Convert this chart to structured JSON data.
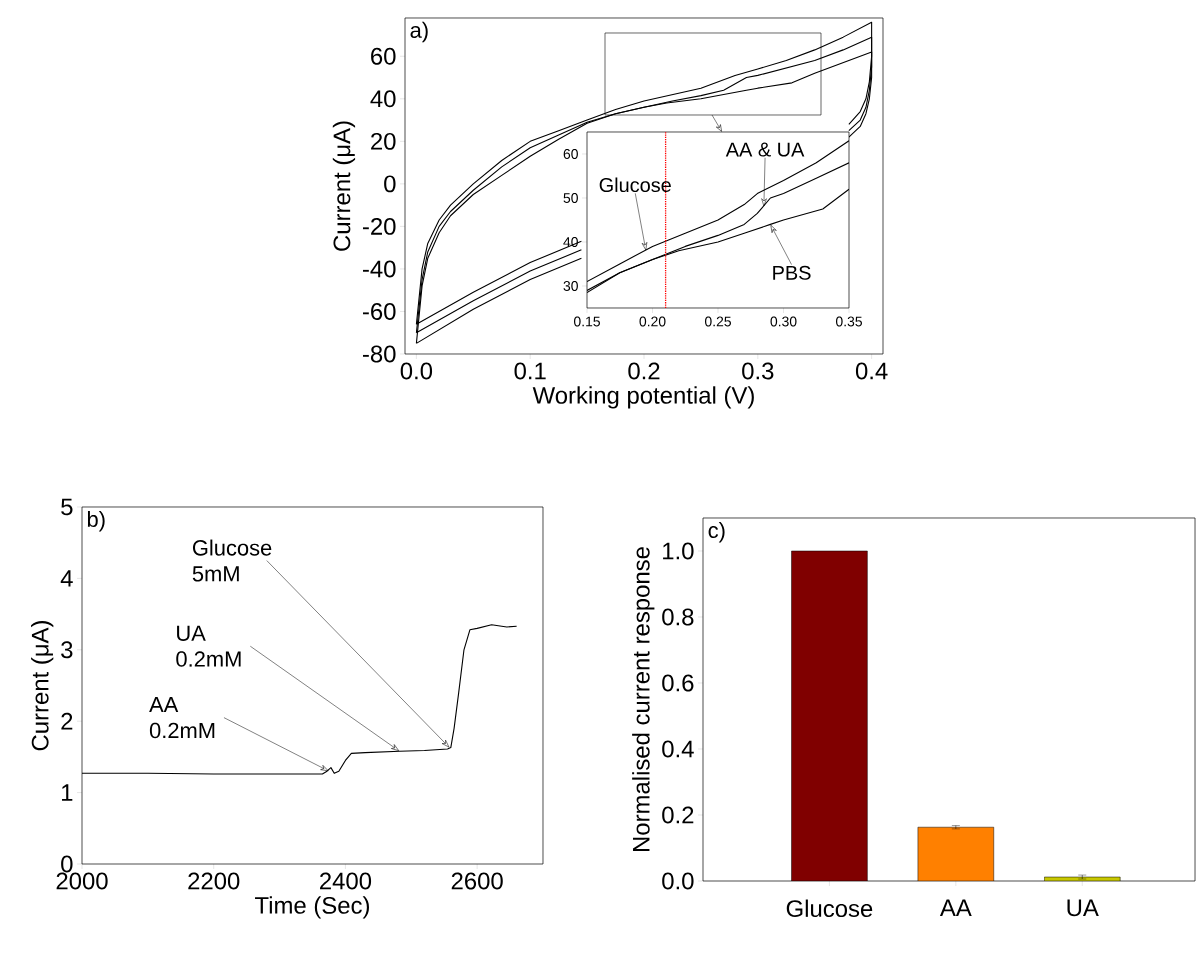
{
  "chart_data": [
    {
      "type": "line",
      "xlabel": "Working potential (V)",
      "ylabel": "Current (μA)",
      "annotations": [
        "a)"
      ],
      "xlim": [
        -0.01,
        0.41
      ],
      "ylim": [
        -80,
        78
      ],
      "xticks": [
        {
          "value": 0,
          "label": "0.0"
        },
        {
          "value": 0.1,
          "label": "0.1"
        },
        {
          "value": 0.2,
          "label": "0.2"
        },
        {
          "value": 0.3,
          "label": "0.3"
        },
        {
          "value": 0.4,
          "label": "0.4"
        }
      ],
      "yticks": [
        -80,
        -60,
        -40,
        -20,
        0,
        20,
        40,
        60
      ],
      "series": [
        {
          "color": "#000000",
          "x": [
            0,
            0.005,
            0.01,
            0.02,
            0.03,
            0.05,
            0.075,
            0.1,
            0.125,
            0.15,
            0.175,
            0.2,
            0.225,
            0.25,
            0.28,
            0.3,
            0.325,
            0.35,
            0.375,
            0.4,
            0.4,
            0.398,
            0.395,
            0.39,
            0.38,
            0.36,
            0.3,
            0.25,
            0.2,
            0.145,
            0.1,
            0.05,
            0
          ],
          "values": [
            -66,
            -40,
            -28,
            -17,
            -10,
            0,
            11,
            20,
            25,
            30,
            35,
            39,
            42,
            45,
            51,
            54,
            58,
            63,
            69,
            76,
            60,
            48,
            40,
            34,
            28,
            null,
            null,
            null,
            null,
            -27,
            -37,
            -51,
            -66
          ]
        },
        {
          "color": "#000000",
          "x": [
            0,
            0.005,
            0.01,
            0.02,
            0.03,
            0.05,
            0.075,
            0.1,
            0.125,
            0.15,
            0.175,
            0.2,
            0.225,
            0.25,
            0.27,
            0.29,
            0.3,
            0.325,
            0.35,
            0.375,
            0.4,
            0.4,
            0.398,
            0.395,
            0.39,
            0.38,
            0.36,
            0.3,
            0.25,
            0.2,
            0.145,
            0.1,
            0.05,
            0
          ],
          "values": [
            -70,
            -45,
            -32,
            -20,
            -13,
            -3,
            8,
            17,
            23,
            29,
            33,
            36,
            39,
            41.5,
            44,
            50,
            51,
            54.5,
            58,
            63,
            69,
            55,
            44,
            36,
            30,
            25,
            null,
            null,
            null,
            null,
            -31,
            -41,
            -55,
            -70
          ]
        },
        {
          "color": "#000000",
          "x": [
            0,
            0.005,
            0.01,
            0.02,
            0.03,
            0.05,
            0.075,
            0.1,
            0.125,
            0.15,
            0.175,
            0.2,
            0.22,
            0.25,
            0.29,
            0.3,
            0.33,
            0.35,
            0.375,
            0.4,
            0.4,
            0.398,
            0.395,
            0.39,
            0.38,
            0.36,
            0.3,
            0.25,
            0.2,
            0.145,
            0.1,
            0.05,
            0
          ],
          "values": [
            -75,
            -48,
            -35,
            -23,
            -15,
            -5,
            4,
            13,
            21,
            28.5,
            33,
            36,
            38,
            40,
            44,
            45,
            47.5,
            52,
            57,
            62,
            50,
            40,
            33,
            27,
            22,
            null,
            null,
            null,
            null,
            -35,
            -45,
            -59,
            -75
          ]
        }
      ]
    },
    {
      "type": "line",
      "xlim": [
        0.15,
        0.35
      ],
      "ylim": [
        25,
        65
      ],
      "xticks": [
        {
          "value": 0.15,
          "label": "0.15"
        },
        {
          "value": 0.2,
          "label": "0.20"
        },
        {
          "value": 0.25,
          "label": "0.25"
        },
        {
          "value": 0.3,
          "label": "0.30"
        },
        {
          "value": 0.35,
          "label": "0.35"
        }
      ],
      "yticks": [
        30,
        40,
        50,
        60
      ],
      "ref_lines": [
        {
          "axis": "x",
          "value": 0.21,
          "color": "#ff0000",
          "line_style": "dotted"
        }
      ],
      "annotations": [
        {
          "text": "Glucose",
          "x": 0.195,
          "y": 38
        },
        {
          "text": "AA & UA",
          "x": 0.285,
          "y": 48
        },
        {
          "text": "PBS",
          "x": 0.29,
          "y": 44
        }
      ],
      "series": [
        {
          "color": "#000000",
          "x": [
            0.15,
            0.175,
            0.2,
            0.225,
            0.25,
            0.27,
            0.28,
            0.3,
            0.325,
            0.35
          ],
          "values": [
            31,
            35,
            39,
            42,
            45,
            48.5,
            51,
            54,
            58,
            63
          ]
        },
        {
          "color": "#000000",
          "x": [
            0.15,
            0.175,
            0.2,
            0.225,
            0.25,
            0.27,
            0.28,
            0.29,
            0.3,
            0.325,
            0.35
          ],
          "values": [
            29,
            33,
            36,
            39,
            41.5,
            44,
            46.5,
            50,
            51,
            54.5,
            58
          ]
        },
        {
          "color": "#000000",
          "x": [
            0.15,
            0.175,
            0.2,
            0.22,
            0.25,
            0.27,
            0.29,
            0.3,
            0.33,
            0.35
          ],
          "values": [
            28.5,
            33,
            36,
            38,
            40,
            42,
            44,
            45,
            47.5,
            52
          ]
        }
      ]
    },
    {
      "type": "line",
      "xlabel": "Time (Sec)",
      "ylabel": "Current (μA)",
      "xlim": [
        2000,
        2700
      ],
      "ylim": [
        0,
        5
      ],
      "xticks": [
        2000,
        2200,
        2400,
        2600
      ],
      "yticks": [
        0,
        1,
        2,
        3,
        4,
        5
      ],
      "annotations": [
        "b)",
        {
          "text": "AA 0.2mM",
          "x": 2375,
          "y": 1.3
        },
        {
          "text": "UA 0.2mM",
          "x": 2482,
          "y": 1.58
        },
        {
          "text": "Glucose 5mM",
          "x": 2558,
          "y": 1.63
        }
      ],
      "series": [
        {
          "color": "#000000",
          "x": [
            2000,
            2100,
            2200,
            2300,
            2365,
            2372,
            2378,
            2383,
            2390,
            2400,
            2409,
            2430,
            2482,
            2520,
            2555,
            2560,
            2565,
            2572,
            2580,
            2589,
            2600,
            2622,
            2645,
            2660
          ],
          "values": [
            1.27,
            1.27,
            1.26,
            1.26,
            1.26,
            1.3,
            1.35,
            1.27,
            1.3,
            1.45,
            1.55,
            1.56,
            1.58,
            1.59,
            1.61,
            1.63,
            1.9,
            2.4,
            3.0,
            3.28,
            3.3,
            3.35,
            3.32,
            3.33
          ]
        }
      ]
    },
    {
      "type": "bar",
      "ylabel": "Normalised current response",
      "annotations": [
        "c)"
      ],
      "categories": [
        "Glucose",
        "AA",
        "UA"
      ],
      "values": [
        1.0,
        0.163,
        0.012
      ],
      "colors": [
        "#800000",
        "#ff8000",
        "#c8c800"
      ],
      "errors": [
        null,
        0.005,
        0.006
      ],
      "ylim": [
        0,
        1.1
      ],
      "yticks": [
        {
          "value": 0,
          "label": "0.0"
        },
        {
          "value": 0.2,
          "label": "0.2"
        },
        {
          "value": 0.4,
          "label": "0.4"
        },
        {
          "value": 0.6,
          "label": "0.6"
        },
        {
          "value": 0.8,
          "label": "0.8"
        },
        {
          "value": 1.0,
          "label": "1.0"
        }
      ]
    }
  ]
}
